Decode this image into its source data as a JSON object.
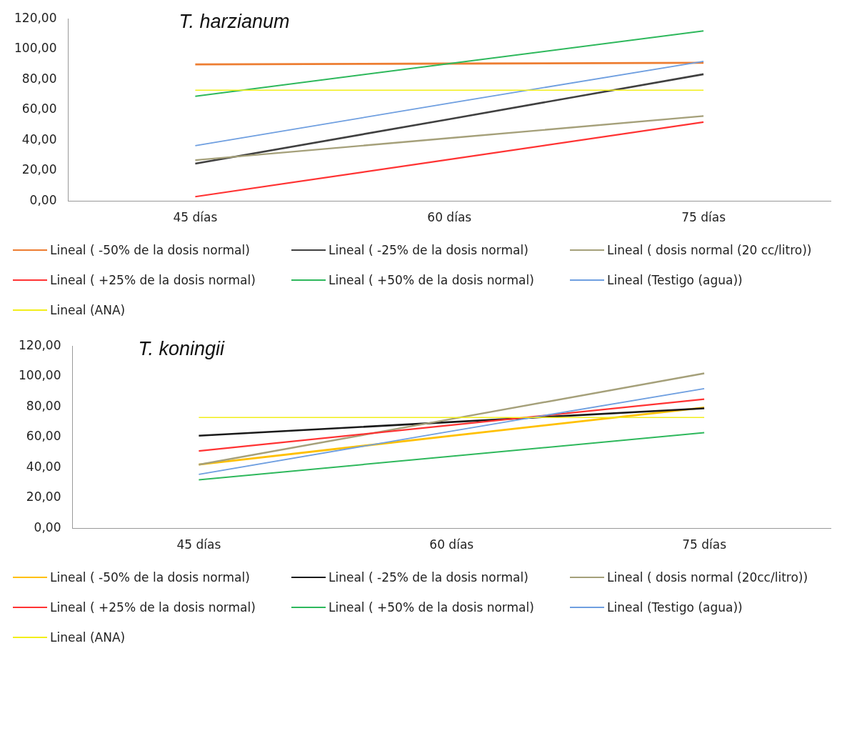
{
  "chart_data": [
    {
      "type": "line",
      "title": "T. harzianum",
      "categories": [
        "45 días",
        "60 días",
        "75 días"
      ],
      "ylim": [
        0,
        120
      ],
      "yticks": [
        {
          "value": 0,
          "label": "0,00"
        },
        {
          "value": 20,
          "label": "20,00"
        },
        {
          "value": 40,
          "label": "40,00"
        },
        {
          "value": 60,
          "label": "60,00"
        },
        {
          "value": 80,
          "label": "80,00"
        },
        {
          "value": 100,
          "label": "100,00"
        },
        {
          "value": 120,
          "label": "120,00"
        }
      ],
      "grid": false,
      "legend": "bottom",
      "marker": "none",
      "line_style": "solid",
      "series": [
        {
          "name": "Lineal ( -50% de la dosis normal)",
          "color": "#ed7d31",
          "values": [
            90,
            90.5,
            91
          ]
        },
        {
          "name": "Lineal ( -25% de la dosis normal)",
          "color": "#404040",
          "values": [
            24.7,
            54,
            83.5
          ]
        },
        {
          "name": "Lineal ( dosis normal (20 cc/litro))",
          "color": "#a5a07a",
          "values": [
            27,
            41.5,
            56
          ]
        },
        {
          "name": "Lineal ( +25% de la dosis normal)",
          "color": "#ff3333",
          "values": [
            3,
            27.5,
            52
          ]
        },
        {
          "name": "Lineal ( +50% de la dosis normal)",
          "color": "#2eb85c",
          "values": [
            69,
            90.5,
            112
          ]
        },
        {
          "name": "Lineal (Testigo (agua))",
          "color": "#6f9fe0",
          "values": [
            36.5,
            64.5,
            92
          ]
        },
        {
          "name": "Lineal (ANA)",
          "color": "#f2ee1a",
          "values": [
            73,
            73,
            73
          ]
        }
      ]
    },
    {
      "type": "line",
      "title": "T. koningii",
      "categories": [
        "45 días",
        "60 días",
        "75 días"
      ],
      "ylim": [
        0,
        120
      ],
      "yticks": [
        {
          "value": 0,
          "label": "0,00"
        },
        {
          "value": 20,
          "label": "20,00"
        },
        {
          "value": 40,
          "label": "40,00"
        },
        {
          "value": 60,
          "label": "60,00"
        },
        {
          "value": 80,
          "label": "80,00"
        },
        {
          "value": 100,
          "label": "100,00"
        },
        {
          "value": 120,
          "label": "120,00"
        }
      ],
      "grid": false,
      "legend": "bottom",
      "marker": "none",
      "line_style": "solid",
      "series": [
        {
          "name": "Lineal ( -50% de la dosis normal)",
          "color": "#ffc000",
          "values": [
            42,
            61,
            79.5
          ]
        },
        {
          "name": "Lineal ( -25% de la dosis normal)",
          "color": "#1a1a1a",
          "values": [
            61,
            70,
            79
          ]
        },
        {
          "name": "Lineal ( dosis normal (20cc/litro))",
          "color": "#a5a07a",
          "values": [
            42,
            72,
            102
          ]
        },
        {
          "name": "Lineal ( +25% de la dosis normal)",
          "color": "#ff3333",
          "values": [
            51,
            68,
            85
          ]
        },
        {
          "name": "Lineal ( +50% de la dosis normal)",
          "color": "#2eb85c",
          "values": [
            32,
            47.5,
            63
          ]
        },
        {
          "name": "Lineal (Testigo (agua))",
          "color": "#6f9fe0",
          "values": [
            35.6,
            64,
            92
          ]
        },
        {
          "name": "Lineal (ANA)",
          "color": "#f2ee1a",
          "values": [
            73,
            73,
            73
          ]
        }
      ]
    }
  ]
}
